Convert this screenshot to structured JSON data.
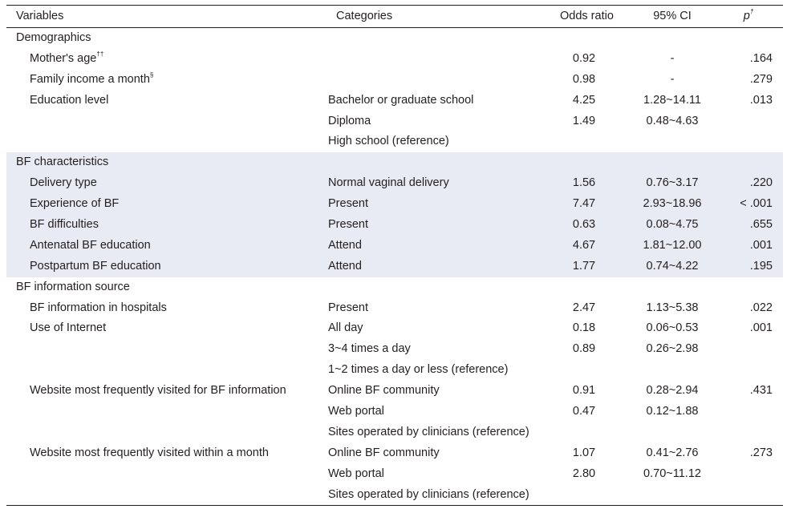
{
  "header": {
    "variables": "Variables",
    "categories": "Categories",
    "odds_ratio": "Odds ratio",
    "ci": "95% CI",
    "p": "p",
    "p_mark": "†"
  },
  "rows": [
    {
      "variable": "Demographics",
      "mark": "",
      "category": "",
      "or": "",
      "ci": "",
      "p": ""
    },
    {
      "variable": "Mother's age",
      "mark": "††",
      "category": "",
      "or": "0.92",
      "ci": "-",
      "p": ".164"
    },
    {
      "variable": "Family income a month",
      "mark": "§",
      "category": "",
      "or": "0.98",
      "ci": "-",
      "p": ".279"
    },
    {
      "variable": "Education level",
      "mark": "",
      "category": "Bachelor or graduate school",
      "or": "4.25",
      "ci": "1.28~14.11",
      "p": ".013"
    },
    {
      "variable": "",
      "mark": "",
      "category": "Diploma",
      "or": "1.49",
      "ci": "0.48~4.63",
      "p": ""
    },
    {
      "variable": "",
      "mark": "",
      "category": "High school (reference)",
      "or": "",
      "ci": "",
      "p": ""
    },
    {
      "variable": "BF characteristics",
      "mark": "",
      "category": "",
      "or": "",
      "ci": "",
      "p": ""
    },
    {
      "variable": "Delivery type",
      "mark": "",
      "category": "Normal vaginal delivery",
      "or": "1.56",
      "ci": "0.76~3.17",
      "p": ".220"
    },
    {
      "variable": "Experience of BF",
      "mark": "",
      "category": "Present",
      "or": "7.47",
      "ci": "2.93~18.96",
      "p": "< .001"
    },
    {
      "variable": "BF difficulties",
      "mark": "",
      "category": "Present",
      "or": "0.63",
      "ci": "0.08~4.75",
      "p": ".655"
    },
    {
      "variable": "Antenatal BF education",
      "mark": "",
      "category": "Attend",
      "or": "4.67",
      "ci": "1.81~12.00",
      "p": ".001"
    },
    {
      "variable": "Postpartum BF education",
      "mark": "",
      "category": "Attend",
      "or": "1.77",
      "ci": "0.74~4.22",
      "p": ".195"
    },
    {
      "variable": "BF information source",
      "mark": "",
      "category": "",
      "or": "",
      "ci": "",
      "p": ""
    },
    {
      "variable": "BF information in hospitals",
      "mark": "",
      "category": "Present",
      "or": "2.47",
      "ci": "1.13~5.38",
      "p": ".022"
    },
    {
      "variable": "Use of Internet",
      "mark": "",
      "category": "All day",
      "or": "0.18",
      "ci": "0.06~0.53",
      "p": ".001"
    },
    {
      "variable": "",
      "mark": "",
      "category": "3~4 times a day",
      "or": "0.89",
      "ci": "0.26~2.98",
      "p": ""
    },
    {
      "variable": "",
      "mark": "",
      "category": "1~2 times a day or less (reference)",
      "or": "",
      "ci": "",
      "p": ""
    },
    {
      "variable": "Website most frequently visited for BF information",
      "mark": "",
      "category": "Online BF community",
      "or": "0.91",
      "ci": "0.28~2.94",
      "p": ".431"
    },
    {
      "variable": "",
      "mark": "",
      "category": "Web portal",
      "or": "0.47",
      "ci": "0.12~1.88",
      "p": ""
    },
    {
      "variable": "",
      "mark": "",
      "category": "Sites operated by clinicians (reference)",
      "or": "",
      "ci": "",
      "p": ""
    },
    {
      "variable": "Website most frequently visited within a month",
      "mark": "",
      "category": "Online BF community",
      "or": "1.07",
      "ci": "0.41~2.76",
      "p": ".273"
    },
    {
      "variable": "",
      "mark": "",
      "category": "Web portal",
      "or": "2.80",
      "ci": "0.70~11.12",
      "p": ""
    },
    {
      "variable": "",
      "mark": "",
      "category": "Sites operated by clinicians (reference)",
      "or": "",
      "ci": "",
      "p": ""
    }
  ],
  "colors": {
    "text": "#231f20",
    "shade": "#e8eaf4",
    "rule": "#231f20"
  }
}
